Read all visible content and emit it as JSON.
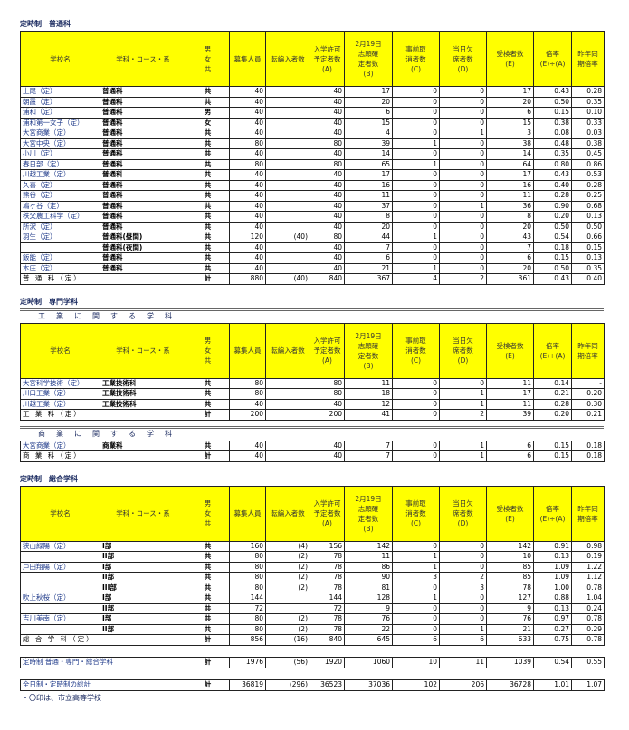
{
  "header": [
    "学校名",
    "学科・コース・系",
    "男\n女\n共",
    "募集人員",
    "転編入者数",
    "入学許可\n予定者数\n(A)",
    "2月19日\n志願確\n定者数\n(B)",
    "事前取\n消者数\n(C)",
    "当日欠\n席者数\n(D)",
    "受検者数\n(E)",
    "倍率\n(E)÷(A)",
    "昨年同\n期倍率"
  ],
  "sections": [
    {
      "title": "定時制　普通科",
      "groups": [
        {
          "label": "",
          "header": true,
          "rows": [
            [
              "上尾（定）",
              "普通科",
              "共",
              "40",
              "",
              "40",
              "17",
              "0",
              "0",
              "17",
              "0.43",
              "0.28"
            ],
            [
              "朝霞（定）",
              "普通科",
              "共",
              "40",
              "",
              "40",
              "20",
              "0",
              "0",
              "20",
              "0.50",
              "0.35"
            ],
            [
              "浦和（定）",
              "普通科",
              "男",
              "40",
              "",
              "40",
              "6",
              "0",
              "0",
              "6",
              "0.15",
              "0.10"
            ],
            [
              "浦和第一女子（定）",
              "普通科",
              "女",
              "40",
              "",
              "40",
              "15",
              "0",
              "0",
              "15",
              "0.38",
              "0.33"
            ],
            [
              "大宮商業（定）",
              "普通科",
              "共",
              "40",
              "",
              "40",
              "4",
              "0",
              "1",
              "3",
              "0.08",
              "0.03"
            ],
            [
              "大宮中央（定）",
              "普通科",
              "共",
              "80",
              "",
              "80",
              "39",
              "1",
              "0",
              "38",
              "0.48",
              "0.38"
            ],
            [
              "小川（定）",
              "普通科",
              "共",
              "40",
              "",
              "40",
              "14",
              "0",
              "0",
              "14",
              "0.35",
              "0.45"
            ],
            [
              "春日部（定）",
              "普通科",
              "共",
              "80",
              "",
              "80",
              "65",
              "1",
              "0",
              "64",
              "0.80",
              "0.86"
            ],
            [
              "川越工業（定）",
              "普通科",
              "共",
              "40",
              "",
              "40",
              "17",
              "0",
              "0",
              "17",
              "0.43",
              "0.53"
            ],
            [
              "久喜（定）",
              "普通科",
              "共",
              "40",
              "",
              "40",
              "16",
              "0",
              "0",
              "16",
              "0.40",
              "0.28"
            ],
            [
              "熊谷（定）",
              "普通科",
              "共",
              "40",
              "",
              "40",
              "11",
              "0",
              "0",
              "11",
              "0.28",
              "0.25"
            ],
            [
              "鳩ヶ谷（定）",
              "普通科",
              "共",
              "40",
              "",
              "40",
              "37",
              "0",
              "1",
              "36",
              "0.90",
              "0.68"
            ],
            [
              "秩父農工科学（定）",
              "普通科",
              "共",
              "40",
              "",
              "40",
              "8",
              "0",
              "0",
              "8",
              "0.20",
              "0.13"
            ],
            [
              "所沢（定）",
              "普通科",
              "共",
              "40",
              "",
              "40",
              "20",
              "0",
              "0",
              "20",
              "0.50",
              "0.50"
            ],
            [
              "羽生（定）",
              "普通科(昼間)",
              "共",
              "120",
              "(40)",
              "80",
              "44",
              "1",
              "0",
              "43",
              "0.54",
              "0.66"
            ],
            [
              "",
              "普通科(夜間)",
              "共",
              "40",
              "",
              "40",
              "7",
              "0",
              "0",
              "7",
              "0.18",
              "0.15"
            ],
            [
              "飯能（定）",
              "普通科",
              "共",
              "40",
              "",
              "40",
              "6",
              "0",
              "0",
              "6",
              "0.15",
              "0.13"
            ],
            [
              "本庄（定）",
              "普通科",
              "共",
              "40",
              "",
              "40",
              "21",
              "1",
              "0",
              "20",
              "0.50",
              "0.35"
            ]
          ],
          "total": [
            "普 通 科（定）",
            "",
            "計",
            "880",
            "(40)",
            "840",
            "367",
            "4",
            "2",
            "361",
            "0.43",
            "0.40"
          ]
        }
      ]
    },
    {
      "title": "定時制　専門学科",
      "groups": [
        {
          "label": "工　業　に　関　す　る　学　科",
          "header": true,
          "rows": [
            [
              "大宮科学技術（定）",
              "工業技術科",
              "共",
              "80",
              "",
              "80",
              "11",
              "0",
              "0",
              "11",
              "0.14",
              "-"
            ],
            [
              "川口工業（定）",
              "工業技術科",
              "共",
              "80",
              "",
              "80",
              "18",
              "0",
              "1",
              "17",
              "0.21",
              "0.20"
            ],
            [
              "川越工業（定）",
              "工業技術科",
              "共",
              "40",
              "",
              "40",
              "12",
              "0",
              "1",
              "11",
              "0.28",
              "0.30"
            ]
          ],
          "total": [
            "工 業 科（定）",
            "",
            "計",
            "200",
            "",
            "200",
            "41",
            "0",
            "2",
            "39",
            "0.20",
            "0.21"
          ]
        },
        {
          "label": "商　業　に　関　す　る　学　科",
          "header": false,
          "rows": [
            [
              "大宮商業（定）",
              "商業科",
              "共",
              "40",
              "",
              "40",
              "7",
              "0",
              "1",
              "6",
              "0.15",
              "0.18"
            ]
          ],
          "total": [
            "商 業 科（定）",
            "",
            "計",
            "40",
            "",
            "40",
            "7",
            "0",
            "1",
            "6",
            "0.15",
            "0.18"
          ]
        }
      ]
    },
    {
      "title": "定時制　総合学科",
      "groups": [
        {
          "label": "",
          "header": true,
          "rows": [
            [
              "狭山緑陽（定）",
              "I部",
              "共",
              "160",
              "(4)",
              "156",
              "142",
              "0",
              "0",
              "142",
              "0.91",
              "0.98"
            ],
            [
              "",
              "II部",
              "共",
              "80",
              "(2)",
              "78",
              "11",
              "1",
              "0",
              "10",
              "0.13",
              "0.19"
            ],
            [
              "戸田翔陽（定）",
              "I部",
              "共",
              "80",
              "(2)",
              "78",
              "86",
              "1",
              "0",
              "85",
              "1.09",
              "1.22"
            ],
            [
              "",
              "II部",
              "共",
              "80",
              "(2)",
              "78",
              "90",
              "3",
              "2",
              "85",
              "1.09",
              "1.12"
            ],
            [
              "",
              "III部",
              "共",
              "80",
              "(2)",
              "78",
              "81",
              "0",
              "3",
              "78",
              "1.00",
              "0.78"
            ],
            [
              "吹上秋桜（定）",
              "I部",
              "共",
              "144",
              "",
              "144",
              "128",
              "1",
              "0",
              "127",
              "0.88",
              "1.04"
            ],
            [
              "",
              "II部",
              "共",
              "72",
              "",
              "72",
              "9",
              "0",
              "0",
              "9",
              "0.13",
              "0.24"
            ],
            [
              "吉川美南（定）",
              "I部",
              "共",
              "80",
              "(2)",
              "78",
              "76",
              "0",
              "0",
              "76",
              "0.97",
              "0.78"
            ],
            [
              "",
              "II部",
              "共",
              "80",
              "(2)",
              "78",
              "22",
              "0",
              "1",
              "21",
              "0.27",
              "0.29"
            ]
          ],
          "total": [
            "総 合 学 科（定）",
            "",
            "計",
            "856",
            "(16)",
            "840",
            "645",
            "6",
            "6",
            "633",
            "0.75",
            "0.78"
          ]
        }
      ]
    }
  ],
  "summary": [
    [
      "定時制 普通・専門・総合学科",
      "計",
      "1976",
      "(56)",
      "1920",
      "1060",
      "10",
      "11",
      "1039",
      "0.54",
      "0.55"
    ],
    [
      "全日制・定時制の総計",
      "計",
      "36819",
      "(296)",
      "36523",
      "37036",
      "102",
      "206",
      "36728",
      "1.01",
      "1.07"
    ]
  ],
  "footnote": "・〇印は、市立高等学校"
}
